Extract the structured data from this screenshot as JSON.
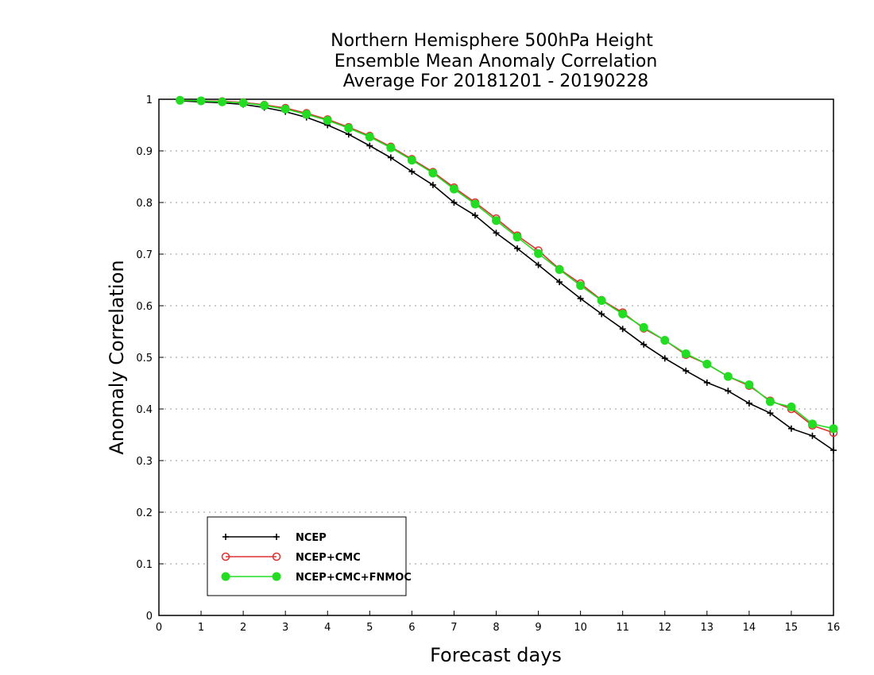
{
  "chart_data": {
    "type": "line",
    "title": [
      "Northern Hemisphere 500hPa Height",
      "Ensemble Mean Anomaly Correlation",
      "Average For 20181201 - 20190228"
    ],
    "xlabel": "Forecast days",
    "ylabel": "Anomaly Correlation",
    "xlim": [
      0,
      16
    ],
    "ylim": [
      0,
      1
    ],
    "xticks": [
      "0",
      "1",
      "2",
      "3",
      "4",
      "5",
      "6",
      "7",
      "8",
      "9",
      "10",
      "11",
      "12",
      "13",
      "14",
      "15",
      "16"
    ],
    "yticks": [
      "0",
      "0.1",
      "0.2",
      "0.3",
      "0.4",
      "0.5",
      "0.6",
      "0.7",
      "0.8",
      "0.9",
      "1"
    ],
    "grid": "dotted horizontal",
    "legend_position": "bottom-left",
    "x": [
      0.5,
      1,
      1.5,
      2,
      2.5,
      3,
      3.5,
      4,
      4.5,
      5,
      5.5,
      6,
      6.5,
      7,
      7.5,
      8,
      8.5,
      9,
      9.5,
      10,
      10.5,
      11,
      11.5,
      12,
      12.5,
      13,
      13.5,
      14,
      14.5,
      15,
      15.5,
      16
    ],
    "series": [
      {
        "name": "NCEP",
        "color": "#000000",
        "marker": "plus",
        "values": [
          0.997,
          0.995,
          0.993,
          0.99,
          0.984,
          0.976,
          0.965,
          0.95,
          0.932,
          0.91,
          0.887,
          0.86,
          0.834,
          0.8,
          0.775,
          0.741,
          0.711,
          0.679,
          0.646,
          0.614,
          0.584,
          0.555,
          0.525,
          0.498,
          0.474,
          0.451,
          0.435,
          0.411,
          0.392,
          0.362,
          0.348,
          0.32
        ]
      },
      {
        "name": "NCEP+CMC",
        "color": "#e03030",
        "marker": "open-circle",
        "values": [
          0.998,
          0.997,
          0.996,
          0.994,
          0.989,
          0.983,
          0.973,
          0.961,
          0.946,
          0.929,
          0.908,
          0.884,
          0.859,
          0.829,
          0.8,
          0.769,
          0.736,
          0.707,
          0.671,
          0.643,
          0.611,
          0.587,
          0.556,
          0.533,
          0.505,
          0.487,
          0.463,
          0.445,
          0.416,
          0.4,
          0.368,
          0.354
        ]
      },
      {
        "name": "NCEP+CMC+FNMOC",
        "color": "#22dd22",
        "marker": "filled-circle",
        "values": [
          0.998,
          0.997,
          0.995,
          0.993,
          0.988,
          0.981,
          0.971,
          0.959,
          0.944,
          0.927,
          0.906,
          0.882,
          0.857,
          0.826,
          0.797,
          0.765,
          0.733,
          0.701,
          0.67,
          0.639,
          0.61,
          0.584,
          0.558,
          0.533,
          0.507,
          0.487,
          0.463,
          0.447,
          0.414,
          0.404,
          0.371,
          0.362
        ]
      }
    ]
  }
}
